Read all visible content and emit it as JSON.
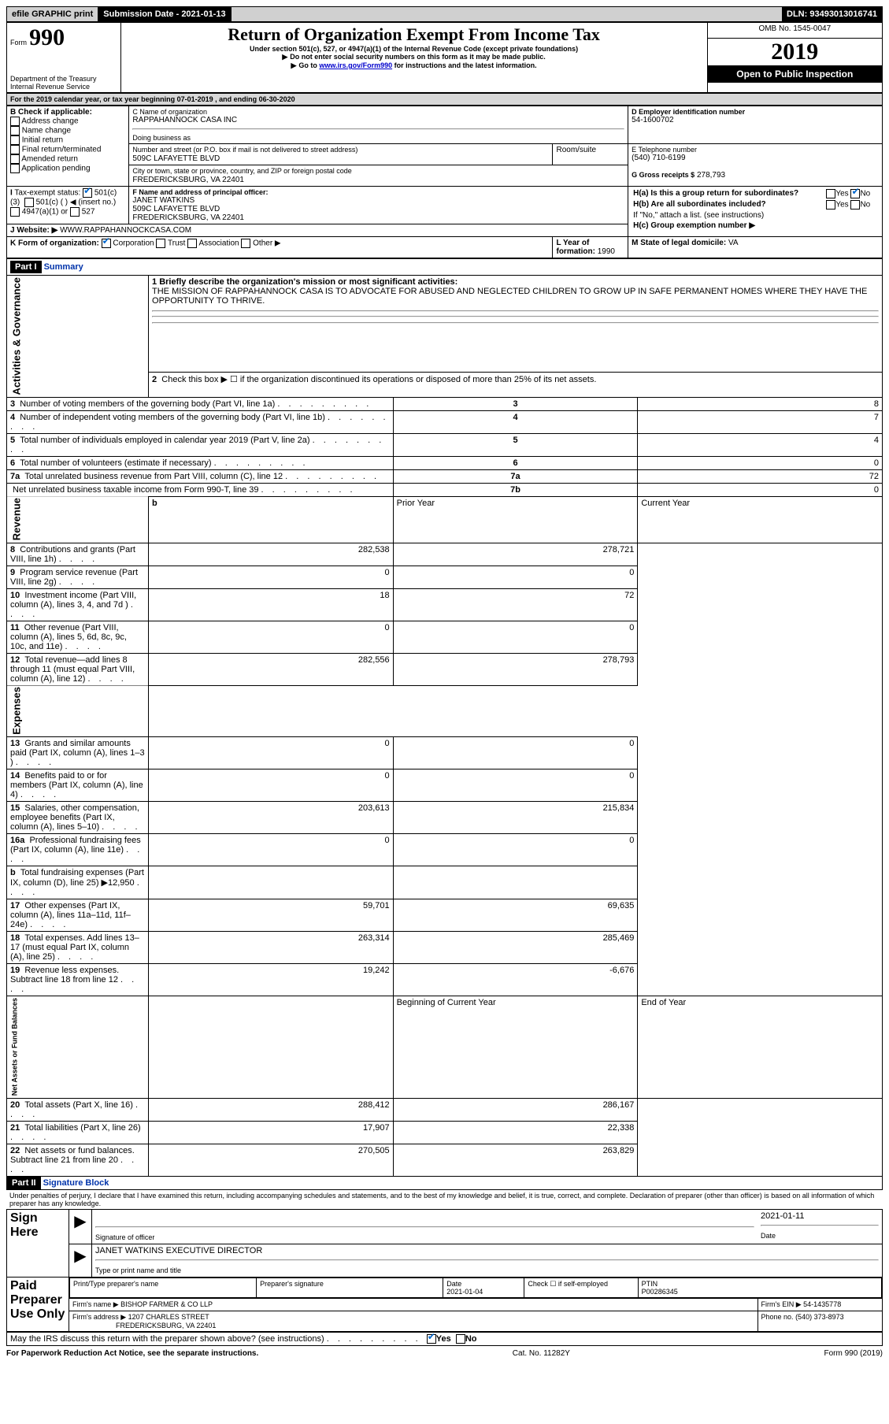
{
  "topbar": {
    "efile": "efile GRAPHIC print",
    "submission": "Submission Date - 2021-01-13",
    "dln": "DLN: 93493013016741"
  },
  "header": {
    "form_label": "Form",
    "form_num": "990",
    "dept": "Department of the Treasury",
    "irs": "Internal Revenue Service",
    "title": "Return of Organization Exempt From Income Tax",
    "subtitle": "Under section 501(c), 527, or 4947(a)(1) of the Internal Revenue Code (except private foundations)",
    "note1": "Do not enter social security numbers on this form as it may be made public.",
    "note2_prefix": "Go to ",
    "note2_link": "www.irs.gov/Form990",
    "note2_suffix": " for instructions and the latest information.",
    "omb": "OMB No. 1545-0047",
    "year": "2019",
    "open_public": "Open to Public Inspection"
  },
  "period": {
    "line": "For the 2019 calendar year, or tax year beginning 07-01-2019    , and ending 06-30-2020"
  },
  "boxB": {
    "title": "B Check if applicable:",
    "opts": [
      "Address change",
      "Name change",
      "Initial return",
      "Final return/terminated",
      "Amended return",
      "Application pending"
    ]
  },
  "boxC": {
    "label": "C Name of organization",
    "org": "RAPPAHANNOCK CASA INC",
    "dba_label": "Doing business as",
    "street_label": "Number and street (or P.O. box if mail is not delivered to street address)",
    "room_label": "Room/suite",
    "street": "509C LAFAYETTE BLVD",
    "city_label": "City or town, state or province, country, and ZIP or foreign postal code",
    "city": "FREDERICKSBURG, VA  22401"
  },
  "boxD": {
    "label": "D Employer identification number",
    "value": "54-1600702"
  },
  "boxE": {
    "label": "E Telephone number",
    "value": "(540) 710-6199"
  },
  "boxG": {
    "label": "G Gross receipts $",
    "value": "278,793"
  },
  "boxF": {
    "label": "F  Name and address of principal officer:",
    "name": "JANET WATKINS",
    "addr1": "509C LAFAYETTE BLVD",
    "addr2": "FREDERICKSBURG, VA  22401"
  },
  "boxH": {
    "a": "H(a)  Is this a group return for subordinates?",
    "b": "H(b)  Are all subordinates included?",
    "ifno": "If \"No,\" attach a list. (see instructions)",
    "c": "H(c)  Group exemption number ▶",
    "yes": "Yes",
    "no": "No"
  },
  "boxI": {
    "label": "Tax-exempt status:",
    "c3": "501(c)(3)",
    "c": "501(c) (   ) ◀ (insert no.)",
    "a1": "4947(a)(1) or",
    "s527": "527"
  },
  "boxJ": {
    "label": "Website: ▶",
    "value": "WWW.RAPPAHANNOCKCASA.COM"
  },
  "boxK": {
    "label": "K Form of organization:",
    "corp": "Corporation",
    "trust": "Trust",
    "assoc": "Association",
    "other": "Other ▶"
  },
  "boxL": {
    "label": "L Year of formation:",
    "value": "1990"
  },
  "boxM": {
    "label": "M State of legal domicile:",
    "value": "VA"
  },
  "part1": {
    "label": "Part I",
    "title": "Summary"
  },
  "mission": {
    "q": "1  Briefly describe the organization's mission or most significant activities:",
    "text": "THE MISSION OF RAPPAHANNOCK CASA IS TO ADVOCATE FOR ABUSED AND NEGLECTED CHILDREN TO GROW UP IN SAFE PERMANENT HOMES WHERE THEY HAVE THE OPPORTUNITY TO THRIVE."
  },
  "line2": "Check this box ▶ ☐  if the organization discontinued its operations or disposed of more than 25% of its net assets.",
  "activities": [
    {
      "n": "3",
      "t": "Number of voting members of the governing body (Part VI, line 1a)",
      "c": "3",
      "v": "8"
    },
    {
      "n": "4",
      "t": "Number of independent voting members of the governing body (Part VI, line 1b)",
      "c": "4",
      "v": "7"
    },
    {
      "n": "5",
      "t": "Total number of individuals employed in calendar year 2019 (Part V, line 2a)",
      "c": "5",
      "v": "4"
    },
    {
      "n": "6",
      "t": "Total number of volunteers (estimate if necessary)",
      "c": "6",
      "v": "0"
    },
    {
      "n": "7a",
      "t": "Total unrelated business revenue from Part VIII, column (C), line 12",
      "c": "7a",
      "v": "72"
    },
    {
      "n": "",
      "t": "Net unrelated business taxable income from Form 990-T, line 39",
      "c": "7b",
      "v": "0"
    }
  ],
  "rev_hdr": {
    "b": "b",
    "prior": "Prior Year",
    "current": "Current Year"
  },
  "revenue": [
    {
      "n": "8",
      "t": "Contributions and grants (Part VIII, line 1h)",
      "p": "282,538",
      "c": "278,721"
    },
    {
      "n": "9",
      "t": "Program service revenue (Part VIII, line 2g)",
      "p": "0",
      "c": "0"
    },
    {
      "n": "10",
      "t": "Investment income (Part VIII, column (A), lines 3, 4, and 7d )",
      "p": "18",
      "c": "72"
    },
    {
      "n": "11",
      "t": "Other revenue (Part VIII, column (A), lines 5, 6d, 8c, 9c, 10c, and 11e)",
      "p": "0",
      "c": "0"
    },
    {
      "n": "12",
      "t": "Total revenue—add lines 8 through 11 (must equal Part VIII, column (A), line 12)",
      "p": "282,556",
      "c": "278,793"
    }
  ],
  "expenses": [
    {
      "n": "13",
      "t": "Grants and similar amounts paid (Part IX, column (A), lines 1–3 )",
      "p": "0",
      "c": "0"
    },
    {
      "n": "14",
      "t": "Benefits paid to or for members (Part IX, column (A), line 4)",
      "p": "0",
      "c": "0"
    },
    {
      "n": "15",
      "t": "Salaries, other compensation, employee benefits (Part IX, column (A), lines 5–10)",
      "p": "203,613",
      "c": "215,834"
    },
    {
      "n": "16a",
      "t": "Professional fundraising fees (Part IX, column (A), line 11e)",
      "p": "0",
      "c": "0"
    },
    {
      "n": "b",
      "t": "Total fundraising expenses (Part IX, column (D), line 25) ▶12,950",
      "p": "",
      "c": "",
      "grey": true
    },
    {
      "n": "17",
      "t": "Other expenses (Part IX, column (A), lines 11a–11d, 11f–24e)",
      "p": "59,701",
      "c": "69,635"
    },
    {
      "n": "18",
      "t": "Total expenses. Add lines 13–17 (must equal Part IX, column (A), line 25)",
      "p": "263,314",
      "c": "285,469"
    },
    {
      "n": "19",
      "t": "Revenue less expenses. Subtract line 18 from line 12",
      "p": "19,242",
      "c": "-6,676"
    }
  ],
  "net_hdr": {
    "begin": "Beginning of Current Year",
    "end": "End of Year"
  },
  "netassets": [
    {
      "n": "20",
      "t": "Total assets (Part X, line 16)",
      "p": "288,412",
      "c": "286,167"
    },
    {
      "n": "21",
      "t": "Total liabilities (Part X, line 26)",
      "p": "17,907",
      "c": "22,338"
    },
    {
      "n": "22",
      "t": "Net assets or fund balances. Subtract line 21 from line 20",
      "p": "270,505",
      "c": "263,829"
    }
  ],
  "part2": {
    "label": "Part II",
    "title": "Signature Block"
  },
  "penalty": "Under penalties of perjury, I declare that I have examined this return, including accompanying schedules and statements, and to the best of my knowledge and belief, it is true, correct, and complete. Declaration of preparer (other than officer) is based on all information of which preparer has any knowledge.",
  "sign": {
    "here": "Sign Here",
    "sig_officer": "Signature of officer",
    "date": "Date",
    "date_val": "2021-01-11",
    "name": "JANET WATKINS  EXECUTIVE DIRECTOR",
    "type_label": "Type or print name and title"
  },
  "paid": {
    "label": "Paid Preparer Use Only",
    "print_name": "Print/Type preparer's name",
    "prep_sig": "Preparer's signature",
    "date_label": "Date",
    "date_val": "2021-01-04",
    "check_label": "Check ☐ if self-employed",
    "ptin_label": "PTIN",
    "ptin": "P00286345",
    "firm_name_label": "Firm's name    ▶",
    "firm_name": "BISHOP FARMER & CO LLP",
    "firm_ein_label": "Firm's EIN ▶",
    "firm_ein": "54-1435778",
    "firm_addr_label": "Firm's address ▶",
    "firm_addr1": "1207 CHARLES STREET",
    "firm_addr2": "FREDERICKSBURG, VA  22401",
    "phone_label": "Phone no.",
    "phone": "(540) 373-8973"
  },
  "discuss": "May the IRS discuss this return with the preparer shown above? (see instructions)",
  "footer": {
    "left": "For Paperwork Reduction Act Notice, see the separate instructions.",
    "mid": "Cat. No. 11282Y",
    "right": "Form 990 (2019)"
  },
  "vert": {
    "act": "Activities & Governance",
    "rev": "Revenue",
    "exp": "Expenses",
    "net": "Net Assets or Fund Balances"
  }
}
